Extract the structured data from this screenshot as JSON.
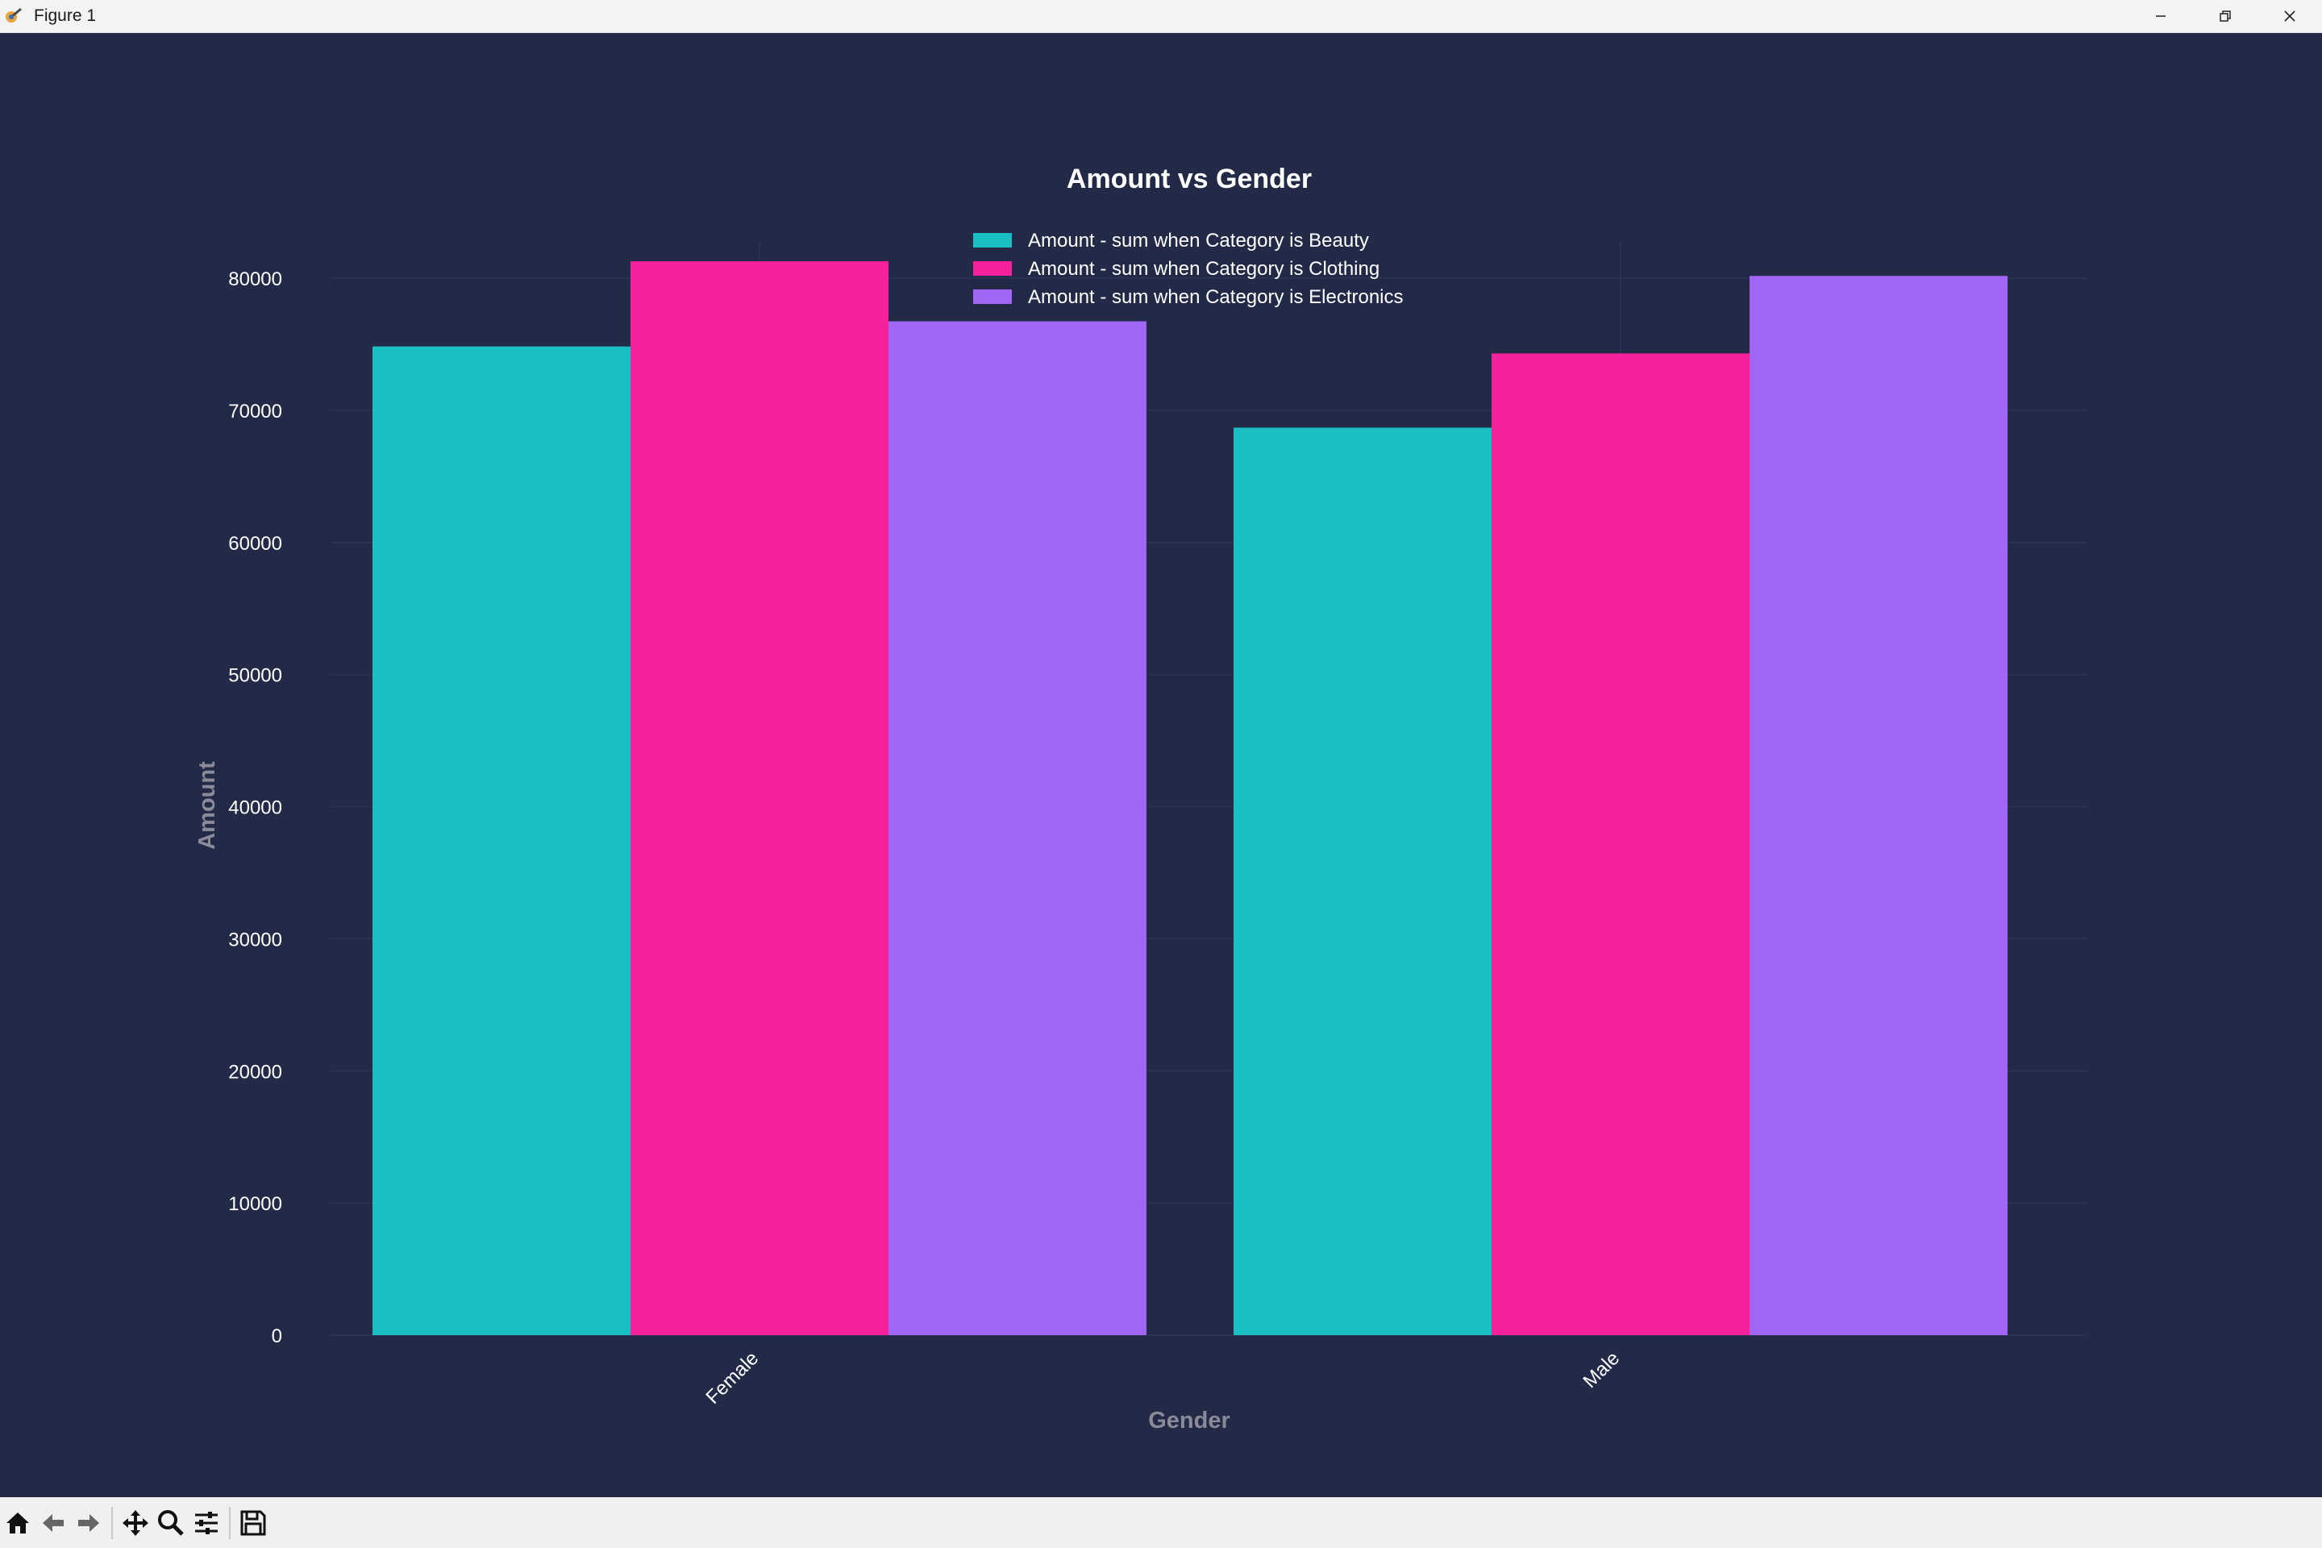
{
  "window": {
    "title": "Figure 1",
    "controls": [
      "minimize-icon",
      "restore-icon",
      "close-icon"
    ]
  },
  "toolbar": {
    "tools": [
      "home-icon",
      "back-icon",
      "forward-icon",
      "pan-icon",
      "zoom-icon",
      "configure-subplots-icon",
      "save-icon"
    ]
  },
  "colors": {
    "background": "#222a48",
    "beauty": "#1abfc3",
    "clothing": "#f5219a",
    "electronics": "#a066f3",
    "text": "#ffffff",
    "axis_label": "#8a8a99"
  },
  "chart_data": {
    "type": "bar",
    "title": "Amount vs Gender",
    "xlabel": "Gender",
    "ylabel": "Amount",
    "categories": [
      "Female",
      "Male"
    ],
    "series": [
      {
        "name": "Amount - sum when Category is Beauty",
        "color": "#1abfc3",
        "values": [
          74830,
          68685
        ]
      },
      {
        "name": "Amount - sum when Category is Clothing",
        "color": "#f5219a",
        "values": [
          81275,
          74305
        ]
      },
      {
        "name": "Amount - sum when Category is Electronics",
        "color": "#a066f3",
        "values": [
          76735,
          80170
        ]
      }
    ],
    "ylim": [
      0,
      84000
    ],
    "yticks": [
      0,
      10000,
      20000,
      30000,
      40000,
      50000,
      60000,
      70000,
      80000
    ],
    "grid": true,
    "legend_position": "top-center"
  }
}
